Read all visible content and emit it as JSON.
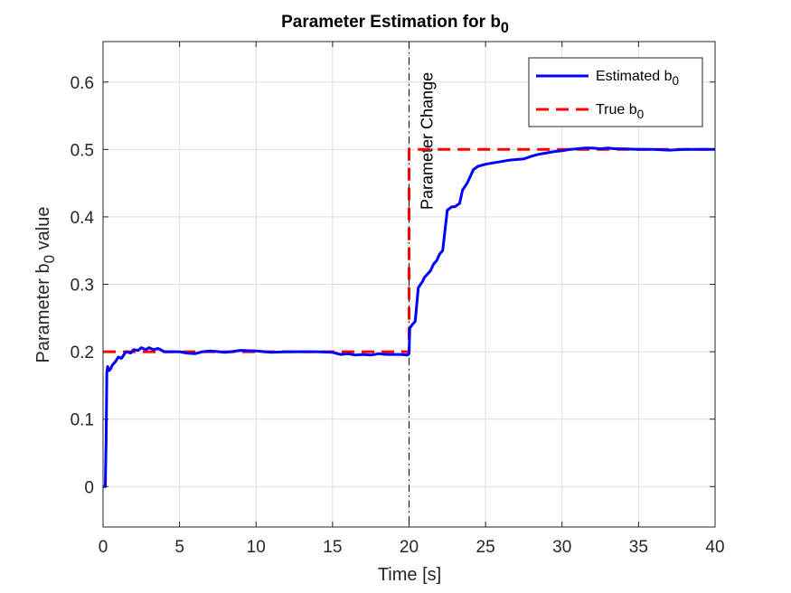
{
  "chart_data": {
    "type": "line",
    "title": "Parameter Estimation for b",
    "title_sub": "0",
    "xlabel": "Time [s]",
    "ylabel_main": "Parameter b",
    "ylabel_sub": "0",
    "ylabel_tail": " value",
    "xlim": [
      0,
      40
    ],
    "ylim": [
      -0.06,
      0.66
    ],
    "xticks": [
      0,
      5,
      10,
      15,
      20,
      25,
      30,
      35,
      40
    ],
    "xtick_labels": [
      "0",
      "5",
      "10",
      "15",
      "20",
      "25",
      "30",
      "35",
      "40"
    ],
    "yticks": [
      0,
      0.1,
      0.2,
      0.3,
      0.4,
      0.5,
      0.6
    ],
    "ytick_labels": [
      "0",
      "0.1",
      "0.2",
      "0.3",
      "0.4",
      "0.5",
      "0.6"
    ],
    "grid": true,
    "legend_position": "top-right",
    "annotation": {
      "text": "Parameter Change",
      "x": 20
    },
    "series": [
      {
        "name": "Estimated b",
        "name_sub": "0",
        "color": "#0000ff",
        "style": "solid",
        "x": [
          0,
          0.15,
          0.2,
          0.25,
          0.3,
          0.4,
          0.5,
          0.6,
          0.8,
          1.0,
          1.2,
          1.5,
          1.8,
          2.0,
          2.3,
          2.5,
          2.8,
          3.0,
          3.3,
          3.6,
          4.0,
          4.5,
          5.0,
          5.5,
          6.0,
          6.5,
          7.0,
          8.0,
          9.0,
          10.0,
          11.0,
          12.0,
          13.0,
          14.0,
          15.0,
          15.5,
          16.0,
          16.5,
          17.0,
          17.5,
          18.0,
          18.5,
          19.0,
          19.5,
          19.9,
          20.0,
          20.05,
          20.2,
          20.4,
          20.5,
          20.6,
          20.7,
          20.9,
          21.0,
          21.2,
          21.4,
          21.6,
          21.8,
          22.0,
          22.2,
          22.3,
          22.5,
          22.8,
          23.0,
          23.3,
          23.5,
          23.8,
          24.0,
          24.2,
          24.5,
          25.0,
          25.5,
          26.0,
          26.5,
          27.0,
          27.5,
          28.0,
          28.5,
          29.0,
          29.5,
          30.0,
          30.5,
          31.0,
          31.5,
          32.0,
          32.5,
          33.0,
          33.5,
          34.0,
          35.0,
          36.0,
          37.0,
          38.0,
          39.0,
          39.5,
          40.0
        ],
        "y": [
          0,
          0,
          0.07,
          0.17,
          0.178,
          0.172,
          0.175,
          0.18,
          0.185,
          0.192,
          0.19,
          0.2,
          0.198,
          0.203,
          0.202,
          0.206,
          0.203,
          0.206,
          0.203,
          0.205,
          0.2,
          0.2,
          0.2,
          0.198,
          0.197,
          0.2,
          0.201,
          0.199,
          0.202,
          0.201,
          0.199,
          0.2,
          0.2,
          0.2,
          0.199,
          0.196,
          0.197,
          0.195,
          0.196,
          0.195,
          0.197,
          0.196,
          0.196,
          0.196,
          0.195,
          0.197,
          0.235,
          0.24,
          0.245,
          0.27,
          0.295,
          0.298,
          0.305,
          0.31,
          0.315,
          0.32,
          0.33,
          0.335,
          0.345,
          0.35,
          0.37,
          0.41,
          0.415,
          0.415,
          0.42,
          0.44,
          0.45,
          0.46,
          0.47,
          0.475,
          0.478,
          0.48,
          0.482,
          0.484,
          0.485,
          0.486,
          0.49,
          0.493,
          0.495,
          0.497,
          0.498,
          0.5,
          0.501,
          0.502,
          0.502,
          0.501,
          0.502,
          0.501,
          0.501,
          0.5,
          0.5,
          0.499,
          0.5,
          0.5,
          0.5,
          0.5
        ]
      },
      {
        "name": "True b",
        "name_sub": "0",
        "color": "#ff0000",
        "style": "dashed",
        "x": [
          0,
          20,
          20,
          40
        ],
        "y": [
          0.2,
          0.2,
          0.5,
          0.5
        ]
      }
    ]
  }
}
